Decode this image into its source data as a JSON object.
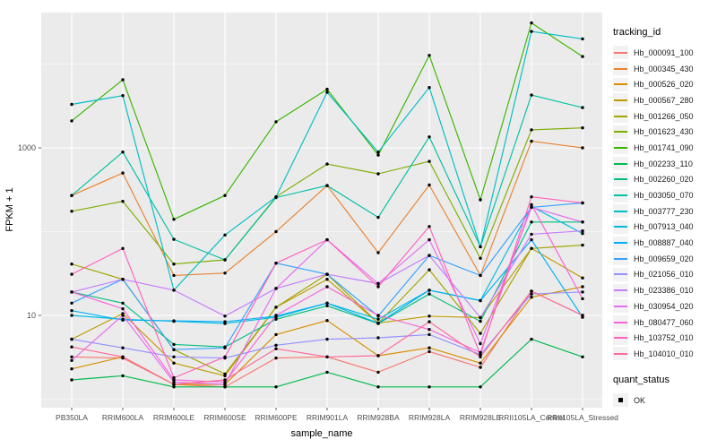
{
  "chart_data": {
    "type": "line",
    "title": "",
    "xlabel": "sample_name",
    "ylabel": "FPKM + 1",
    "y_scale": "log10",
    "ylim": [
      0.8,
      40000
    ],
    "y_ticks": [
      10,
      1000
    ],
    "y_minor_ticks": [
      1,
      100,
      10000
    ],
    "grid": "on",
    "panel_bg": "#EBEBEB",
    "grid_color": "#FFFFFF",
    "axis_text_color": "#4D4D4D",
    "point_color": "#000000",
    "categories": [
      "PB350LA",
      "RRIM600LA",
      "RRIM600LE",
      "RRIM600SE",
      "RRIM600PE",
      "RRIM901LA",
      "RRIM928BA",
      "RRIM928LA",
      "RRIM928LE",
      "RRII105LA_Control",
      "RRII105LA_Stressed"
    ],
    "legend": {
      "title": "tracking_id",
      "position": "right"
    },
    "quant_status": {
      "title": "quant_status",
      "items": [
        "OK"
      ]
    },
    "series": [
      {
        "name": "Hb_000091_100",
        "color": "#F8766D",
        "values": [
          3.2,
          3.1,
          1.5,
          1.4,
          3.1,
          3.2,
          2.1,
          3.7,
          2.4,
          19.5,
          10
        ]
      },
      {
        "name": "Hb_000345_430",
        "color": "#EA8331",
        "values": [
          270,
          500,
          30,
          32,
          100,
          355,
          56,
          360,
          30,
          1200,
          1000
        ]
      },
      {
        "name": "Hb_000526_020",
        "color": "#D89000",
        "values": [
          2.3,
          3.2,
          1.5,
          1.5,
          5.9,
          8.7,
          3.3,
          4.1,
          2.7,
          16.5,
          22
        ]
      },
      {
        "name": "Hb_000567_280",
        "color": "#C09B00",
        "values": [
          5.2,
          10.5,
          2.7,
          1.9,
          12.5,
          27,
          8.1,
          9.8,
          9.4,
          63,
          28
        ]
      },
      {
        "name": "Hb_001266_050",
        "color": "#A3A500",
        "values": [
          41,
          27,
          3.9,
          2.0,
          12.5,
          31,
          8.1,
          35,
          6.1,
          63,
          69
        ]
      },
      {
        "name": "Hb_001623_430",
        "color": "#7CAE00",
        "values": [
          175,
          230,
          41,
          46,
          260,
          640,
          490,
          690,
          48,
          1640,
          1730
        ]
      },
      {
        "name": "Hb_001741_090",
        "color": "#39B600",
        "values": [
          2100,
          6500,
          140,
          270,
          2050,
          5000,
          820,
          12700,
          240,
          31000,
          12300
        ]
      },
      {
        "name": "Hb_002233_110",
        "color": "#00BB4E",
        "values": [
          1.7,
          1.9,
          1.4,
          1.4,
          1.4,
          2.1,
          1.4,
          1.4,
          1.4,
          5.2,
          3.2
        ]
      },
      {
        "name": "Hb_002260_020",
        "color": "#00BF7D",
        "values": [
          19,
          14,
          4.5,
          4.2,
          9,
          13,
          8,
          18,
          8.5,
          130,
          130
        ]
      },
      {
        "name": "Hb_003050_070",
        "color": "#00C1A3",
        "values": [
          270,
          890,
          81,
          46,
          255,
          355,
          148,
          1350,
          66,
          4270,
          3020
        ]
      },
      {
        "name": "Hb_003777_230",
        "color": "#00BFC4",
        "values": [
          3300,
          4200,
          20,
          91,
          260,
          4600,
          890,
          5250,
          66,
          24500,
          20000
        ]
      },
      {
        "name": "Hb_007913_040",
        "color": "#00BAE0",
        "values": [
          10,
          9,
          8.5,
          8,
          9.5,
          14,
          9,
          20,
          15,
          200,
          95
        ]
      },
      {
        "name": "Hb_008887_040",
        "color": "#00B0F6",
        "values": [
          11.4,
          8.8,
          8.6,
          8.4,
          9.8,
          14,
          8.1,
          20,
          15,
          80,
          9.5
        ]
      },
      {
        "name": "Hb_009659_020",
        "color": "#35A2FF",
        "values": [
          14,
          27,
          3.9,
          4.1,
          42,
          31,
          9.8,
          52,
          30,
          195,
          220
        ]
      },
      {
        "name": "Hb_021056_010",
        "color": "#9590FF",
        "values": [
          5.2,
          4.1,
          3.2,
          3.1,
          4.4,
          5.2,
          5.4,
          5.9,
          3.4,
          18,
          19
        ]
      },
      {
        "name": "Hb_023386_010",
        "color": "#C77CFF",
        "values": [
          19,
          27,
          20,
          9.8,
          21,
          31,
          24,
          52,
          9.4,
          93,
          102
        ]
      },
      {
        "name": "Hb_030954_020",
        "color": "#E76BF3",
        "values": [
          2.9,
          10,
          1.6,
          1.5,
          21,
          80,
          24,
          80,
          4.6,
          195,
          130
        ]
      },
      {
        "name": "Hb_080477_060",
        "color": "#FA62DB",
        "values": [
          19,
          12,
          1.7,
          1.6,
          10,
          22,
          10,
          6.8,
          3.6,
          210,
          15.8
        ]
      },
      {
        "name": "Hb_103752_010",
        "color": "#FF62BC",
        "values": [
          31,
          63,
          1.8,
          3.2,
          42,
          80,
          22,
          115,
          3.4,
          260,
          220
        ]
      },
      {
        "name": "Hb_104010_010",
        "color": "#FF6A98",
        "values": [
          4.2,
          3.2,
          1.5,
          1.7,
          4.0,
          3.2,
          3.3,
          8.4,
          3.2,
          19.5,
          10
        ]
      }
    ]
  }
}
